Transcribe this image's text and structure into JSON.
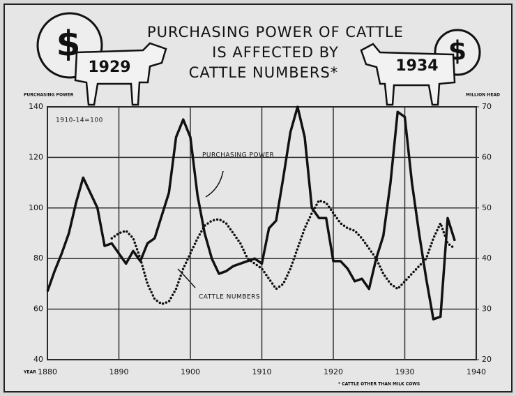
{
  "chart_data": {
    "type": "line",
    "title": [
      "PURCHASING POWER OF CATTLE",
      "IS AFFECTED BY",
      "CATTLE NUMBERS*"
    ],
    "badges": [
      "1929",
      "1934"
    ],
    "dollar": "$",
    "ylabel": "PURCHASING POWER",
    "y2label": "MILLION HEAD",
    "xlabel": "YEAR",
    "index_note": "1910-14=100",
    "footnote": "* CATTLE OTHER THAN MILK COWS",
    "x": [
      1880,
      1881,
      1882,
      1883,
      1884,
      1885,
      1886,
      1887,
      1888,
      1889,
      1890,
      1891,
      1892,
      1893,
      1894,
      1895,
      1896,
      1897,
      1898,
      1899,
      1900,
      1901,
      1902,
      1903,
      1904,
      1905,
      1906,
      1907,
      1908,
      1909,
      1910,
      1911,
      1912,
      1913,
      1914,
      1915,
      1916,
      1917,
      1918,
      1919,
      1920,
      1921,
      1922,
      1923,
      1924,
      1925,
      1926,
      1927,
      1928,
      1929,
      1930,
      1931,
      1932,
      1933,
      1934,
      1935,
      1936,
      1937
    ],
    "series": [
      {
        "name": "PURCHASING POWER",
        "color": "#111111",
        "style": "solid",
        "values": [
          67,
          75,
          82,
          90,
          102,
          112,
          106,
          100,
          85,
          86,
          82,
          78,
          83,
          79,
          86,
          88,
          97,
          106,
          128,
          135,
          128,
          105,
          90,
          80,
          74,
          75,
          77,
          78,
          79,
          80,
          78,
          92,
          95,
          112,
          130,
          140,
          128,
          100,
          96,
          96,
          79,
          79,
          76,
          71,
          72,
          68,
          80,
          89,
          110,
          138,
          136,
          110,
          90,
          72,
          56,
          57,
          96,
          87
        ]
      },
      {
        "name": "CATTLE NUMBERS",
        "color": "#111111",
        "style": "dotted",
        "axis": "y2",
        "values": [
          null,
          null,
          null,
          null,
          null,
          null,
          null,
          null,
          null,
          44,
          45,
          45.5,
          44,
          40,
          35,
          32,
          31,
          31.5,
          34,
          38,
          41,
          44,
          46.5,
          47.5,
          47.8,
          47,
          45,
          43,
          40,
          39,
          38,
          36,
          34,
          35,
          38,
          42,
          46,
          49,
          51.5,
          51,
          49,
          47,
          46,
          45.5,
          44,
          42,
          40,
          37,
          35,
          34,
          35.5,
          37,
          38.5,
          40,
          44,
          47,
          43,
          42
        ]
      }
    ],
    "xlim": [
      1880,
      1940
    ],
    "xticks": [
      1880,
      1890,
      1900,
      1910,
      1920,
      1930,
      1940
    ],
    "ylim": [
      40,
      140
    ],
    "yticks": [
      40,
      60,
      80,
      100,
      120,
      140
    ],
    "y2lim": [
      20,
      70
    ],
    "y2ticks": [
      20,
      30,
      40,
      50,
      60,
      70
    ],
    "grid": true
  }
}
